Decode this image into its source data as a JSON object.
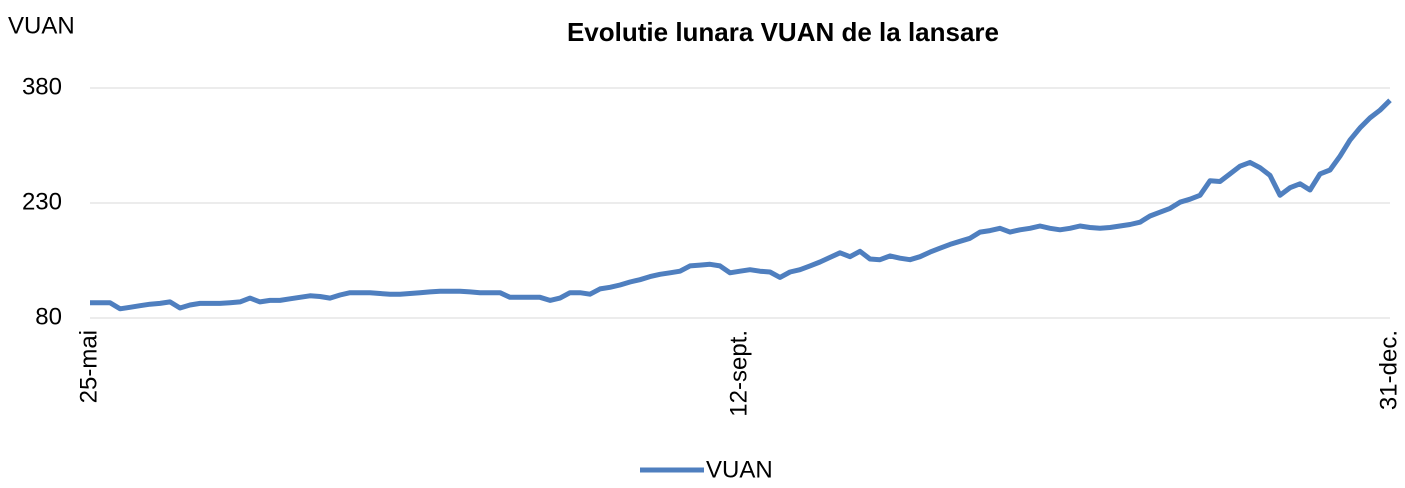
{
  "chart_data": {
    "type": "line",
    "title": "Evolutie lunara VUAN de la lansare",
    "ylabel": "VUAN",
    "categories": [
      "25-mai",
      null,
      null,
      null,
      null,
      null,
      null,
      null,
      null,
      null,
      null,
      null,
      null,
      null,
      null,
      null,
      null,
      null,
      null,
      null,
      null,
      null,
      null,
      null,
      null,
      null,
      null,
      null,
      null,
      null,
      null,
      null,
      null,
      null,
      null,
      null,
      null,
      null,
      null,
      null,
      null,
      null,
      null,
      null,
      null,
      null,
      null,
      null,
      null,
      null,
      null,
      null,
      null,
      null,
      null,
      null,
      null,
      null,
      null,
      null,
      null,
      null,
      null,
      null,
      null,
      "12-sept.",
      null,
      null,
      null,
      null,
      null,
      null,
      null,
      null,
      null,
      null,
      null,
      null,
      null,
      null,
      null,
      null,
      null,
      null,
      null,
      null,
      null,
      null,
      null,
      null,
      null,
      null,
      null,
      null,
      null,
      null,
      null,
      null,
      null,
      null,
      null,
      null,
      null,
      null,
      null,
      null,
      null,
      null,
      null,
      null,
      null,
      null,
      null,
      null,
      null,
      null,
      null,
      null,
      null,
      null,
      null,
      null,
      null,
      null,
      null,
      null,
      null,
      null,
      null,
      null,
      "31-dec."
    ],
    "series": [
      {
        "name": "VUAN",
        "color": "#4f7fbf",
        "values": [
          100,
          100,
          100,
          92,
          94,
          96,
          98,
          99,
          101,
          93,
          97,
          99,
          99,
          99,
          100,
          101,
          106,
          101,
          103,
          103,
          105,
          107,
          109,
          108,
          106,
          110,
          113,
          113,
          113,
          112,
          111,
          111,
          112,
          113,
          114,
          115,
          115,
          115,
          114,
          113,
          113,
          113,
          107,
          107,
          107,
          107,
          103,
          106,
          113,
          113,
          111,
          118,
          120,
          123,
          127,
          130,
          134,
          137,
          139,
          141,
          148,
          149,
          150,
          148,
          139,
          141,
          143,
          141,
          140,
          133,
          140,
          143,
          148,
          153,
          159,
          165,
          160,
          167,
          157,
          156,
          161,
          158,
          156,
          160,
          166,
          171,
          176,
          180,
          184,
          192,
          194,
          197,
          192,
          195,
          197,
          200,
          197,
          195,
          197,
          200,
          198,
          197,
          198,
          200,
          202,
          205,
          213,
          218,
          223,
          231,
          235,
          240,
          259,
          258,
          268,
          278,
          283,
          276,
          266,
          240,
          250,
          255,
          247,
          268,
          273,
          291,
          312,
          328,
          341,
          351,
          364
        ]
      }
    ],
    "ylim": [
      80,
      380
    ],
    "yticks": [
      80,
      230,
      380
    ],
    "grid": true,
    "legend": "bottom"
  }
}
